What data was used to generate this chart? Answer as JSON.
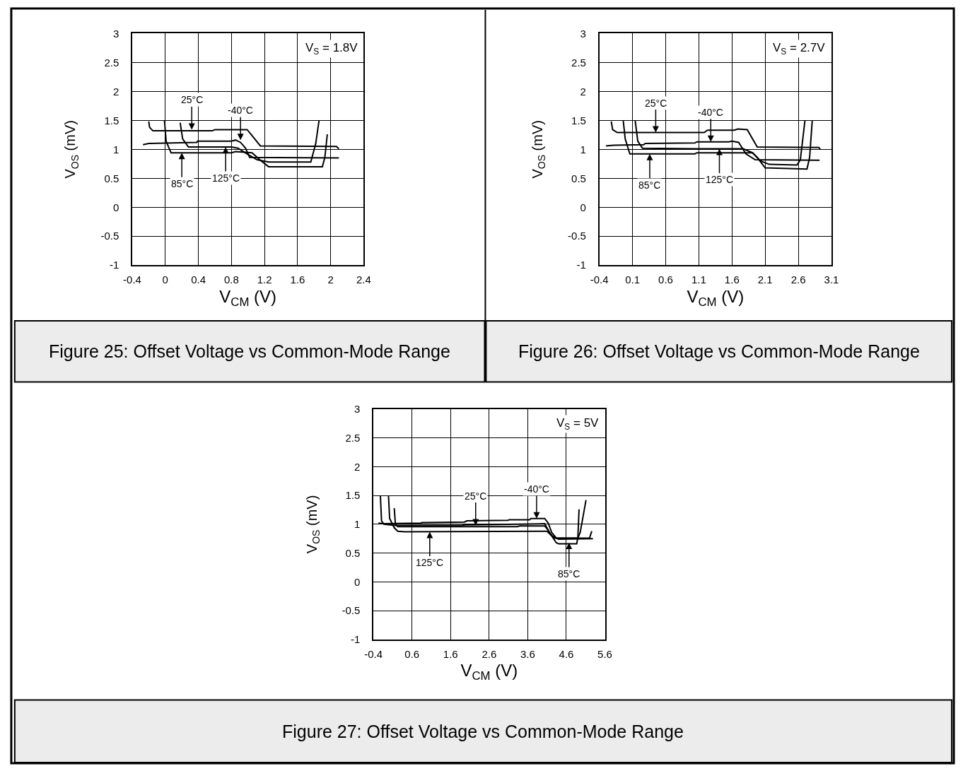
{
  "chart_data": [
    {
      "type": "line",
      "title": "Figure 25: Offset Voltage vs Common-Mode Range",
      "xlabel": "V$_{CM}$ (V)",
      "ylabel": "V$_{OS}$ (mV)",
      "xlim": [
        -0.4,
        2.4
      ],
      "xticks": [
        -0.4,
        0,
        0.4,
        0.8,
        1.2,
        1.6,
        2,
        2.4
      ],
      "ylim": [
        -1,
        3
      ],
      "yticks": [
        -1,
        -0.5,
        0,
        0.5,
        1,
        1.5,
        2,
        2.5,
        3
      ],
      "grid": true,
      "annotations": [
        "V$_{S}$ = 1.8V",
        {
          "text": "25°C",
          "x": 0.32,
          "y": 1.34
        },
        {
          "text": "-40°C",
          "x": 0.91,
          "y": 1.16
        },
        {
          "text": "85°C",
          "x": 0.2,
          "y": 0.94
        },
        {
          "text": "125°C",
          "x": 0.73,
          "y": 1.04
        }
      ],
      "series": [
        {
          "color": "#000000",
          "x": [
            -0.2,
            -0.19,
            -0.15,
            0.57,
            0.6,
            0.99,
            1.06,
            1.15,
            2.07,
            2.1
          ],
          "values": [
            1.48,
            1.38,
            1.32,
            1.32,
            1.34,
            1.34,
            1.22,
            1.06,
            1.05,
            1.01
          ]
        },
        {
          "color": "#000000",
          "x": [
            -0.27,
            -0.2,
            0.38,
            0.39,
            0.8,
            0.85,
            0.91,
            0.97,
            1.02,
            2.1
          ],
          "values": [
            1.08,
            1.1,
            1.12,
            1.14,
            1.14,
            1.16,
            1.12,
            1.02,
            0.86,
            0.85
          ]
        },
        {
          "color": "#000000",
          "x": [
            0.18,
            0.21,
            0.28,
            0.8,
            0.88,
            0.99,
            1.11,
            1.25,
            1.76,
            1.82,
            1.86
          ],
          "values": [
            1.46,
            1.18,
            1.04,
            1.04,
            1.02,
            0.92,
            0.82,
            0.78,
            0.78,
            1.1,
            1.5
          ]
        },
        {
          "color": "#000000",
          "x": [
            -0.01,
            0.01,
            0.07,
            0.8,
            0.85,
            1.05,
            1.16,
            1.25,
            1.9,
            1.93,
            1.96
          ],
          "values": [
            1.5,
            1.14,
            0.94,
            0.94,
            0.96,
            0.94,
            0.8,
            0.7,
            0.7,
            0.86,
            1.26
          ]
        }
      ]
    },
    {
      "type": "line",
      "title": "Figure 26: Offset Voltage vs Common-Mode Range",
      "xlabel": "V$_{CM}$ (V)",
      "ylabel": "V$_{OS}$ (mV)",
      "xlim": [
        -0.4,
        3.1
      ],
      "xticks": [
        -0.4,
        0.1,
        0.6,
        1.1,
        1.6,
        2.1,
        2.6,
        3.1
      ],
      "ylim": [
        -1,
        3
      ],
      "yticks": [
        -1,
        -0.5,
        0,
        0.5,
        1,
        1.5,
        2,
        2.5,
        3
      ],
      "grid": true,
      "annotations": [
        "V$_{S}$ = 2.7V",
        {
          "text": "25°C",
          "x": 0.45,
          "y": 1.29
        },
        {
          "text": "-40°C",
          "x": 1.28,
          "y": 1.13
        },
        {
          "text": "85°C",
          "x": 0.36,
          "y": 0.92
        },
        {
          "text": "125°C",
          "x": 1.41,
          "y": 1.01
        }
      ],
      "series": [
        {
          "color": "#000000",
          "x": [
            -0.22,
            -0.2,
            -0.13,
            1.18,
            1.23,
            1.63,
            1.69,
            1.83,
            1.98,
            2.91,
            2.93
          ],
          "values": [
            1.48,
            1.34,
            1.29,
            1.29,
            1.33,
            1.33,
            1.35,
            1.34,
            1.04,
            1.03,
            1.0
          ]
        },
        {
          "color": "#000000",
          "x": [
            -0.3,
            -0.18,
            0.27,
            0.29,
            1.04,
            1.07,
            1.55,
            1.6,
            1.7,
            1.81,
            1.95,
            2.92
          ],
          "values": [
            1.06,
            1.07,
            1.08,
            1.1,
            1.11,
            1.13,
            1.13,
            1.14,
            1.12,
            0.92,
            0.82,
            0.81
          ]
        },
        {
          "color": "#000000",
          "x": [
            0.14,
            0.18,
            0.25,
            1.04,
            1.63,
            1.77,
            1.91,
            2.03,
            2.16,
            2.58,
            2.63,
            2.7
          ],
          "values": [
            1.5,
            1.14,
            1.02,
            1.01,
            1.01,
            1.01,
            0.94,
            0.8,
            0.74,
            0.73,
            0.82,
            1.5
          ]
        },
        {
          "color": "#000000",
          "x": [
            -0.04,
            -0.01,
            0.06,
            1.04,
            1.07,
            1.91,
            1.98,
            2.1,
            2.73,
            2.77,
            2.81
          ],
          "values": [
            1.5,
            1.18,
            0.92,
            0.92,
            0.94,
            0.94,
            0.86,
            0.68,
            0.66,
            0.86,
            1.5
          ]
        }
      ]
    },
    {
      "type": "line",
      "title": "Figure 27: Offset Voltage vs Common-Mode Range",
      "xlabel": "V$_{CM}$ (V)",
      "ylabel": "V$_{OS}$ (mV)",
      "xlim": [
        -0.4,
        5.6
      ],
      "xticks": [
        -0.4,
        0.6,
        1.6,
        2.6,
        3.6,
        4.6,
        5.6
      ],
      "ylim": [
        -1,
        3
      ],
      "yticks": [
        -1,
        -0.5,
        0,
        0.5,
        1,
        1.5,
        2,
        2.5,
        3
      ],
      "grid": true,
      "annotations": [
        "V$_{S}$ = 5V",
        {
          "text": "-40°C",
          "x": 3.83,
          "y": 1.1
        },
        {
          "text": "125°C",
          "x": 1.06,
          "y": 0.87
        },
        {
          "text": "25°C",
          "x": 2.25,
          "y": 0.98
        },
        {
          "text": "85°C",
          "x": 4.67,
          "y": 0.68
        }
      ],
      "series": [
        {
          "color": "#000000",
          "x": [
            -0.27,
            -0.13,
            0.83,
            0.86,
            1.96,
            2.02,
            3.09,
            3.12,
            3.65,
            3.68,
            4.04,
            4.13,
            4.22,
            4.34,
            4.9,
            4.96,
            5.11
          ],
          "values": [
            1.02,
            1.01,
            1.02,
            1.03,
            1.04,
            1.06,
            1.07,
            1.08,
            1.08,
            1.1,
            1.1,
            1.02,
            0.86,
            0.76,
            0.76,
            0.86,
            1.42
          ]
        },
        {
          "color": "#000000",
          "x": [
            -0.22,
            -0.19,
            -0.13,
            0.17,
            1.9,
            1.96,
            3.09,
            4.04,
            4.16,
            4.28,
            5.2,
            5.26
          ],
          "values": [
            1.5,
            1.06,
            1.0,
            0.98,
            0.98,
            0.99,
            1.0,
            1.01,
            0.86,
            0.76,
            0.76,
            0.88
          ]
        },
        {
          "color": "#000000",
          "x": [
            -0.01,
            0.02,
            0.14,
            0.23,
            0.41,
            4.1,
            4.22,
            4.4,
            5.29
          ],
          "values": [
            1.5,
            1.1,
            0.94,
            0.88,
            0.87,
            0.88,
            0.8,
            0.74,
            0.75
          ]
        },
        {
          "color": "#000000",
          "x": [
            0.14,
            0.17,
            0.23,
            3.33,
            3.39,
            4.04,
            4.13,
            4.22,
            4.34,
            4.4,
            4.87,
            4.9,
            4.93
          ],
          "values": [
            1.28,
            1.0,
            0.96,
            0.96,
            0.97,
            0.97,
            0.9,
            0.8,
            0.68,
            0.66,
            0.66,
            0.78,
            1.26
          ]
        }
      ]
    }
  ]
}
